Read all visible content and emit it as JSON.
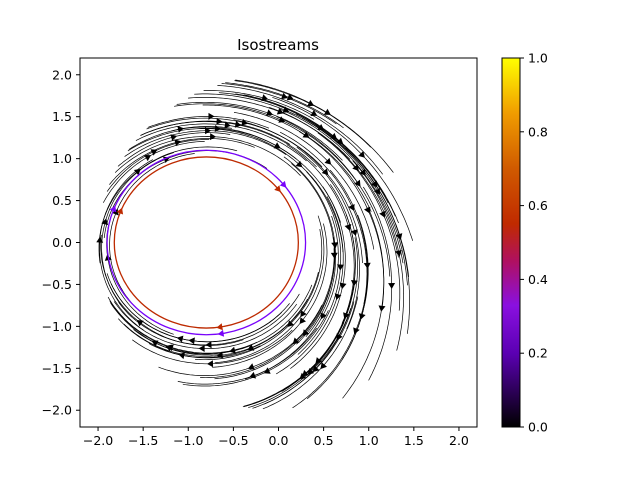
{
  "chart_data": {
    "type": "streamplot",
    "title": "Isostreams",
    "xlabel": "",
    "ylabel": "",
    "xlim": [
      -2.2,
      2.2
    ],
    "ylim": [
      -2.2,
      2.2
    ],
    "xticks": [
      -2.0,
      -1.5,
      -1.0,
      -0.5,
      0.0,
      0.5,
      1.0,
      1.5,
      2.0
    ],
    "xtick_labels": [
      "−2.0",
      "−1.5",
      "−1.0",
      "−0.5",
      "0.0",
      "0.5",
      "1.0",
      "1.5",
      "2.0"
    ],
    "yticks": [
      -2.0,
      -1.5,
      -1.0,
      -0.5,
      0.0,
      0.5,
      1.0,
      1.5,
      2.0
    ],
    "ytick_labels": [
      "−2.0",
      "−1.5",
      "−1.0",
      "−0.5",
      "0.0",
      "0.5",
      "1.0",
      "1.5",
      "2.0"
    ],
    "grid": false,
    "colormap": "gnuplot",
    "colorbar": {
      "range": [
        0.0,
        1.0
      ],
      "ticks": [
        0.0,
        0.2,
        0.4,
        0.6,
        0.8,
        1.0
      ],
      "tick_labels": [
        "0.0",
        "0.2",
        "0.4",
        "0.6",
        "0.8",
        "1.0"
      ]
    },
    "outer_domain_radius": 2.0,
    "circular_streams": [
      {
        "center": [
          -0.8,
          0.0
        ],
        "radius": 1.02,
        "value": 0.55
      },
      {
        "center": [
          -0.8,
          0.0
        ],
        "radius": 1.1,
        "value": 0.22
      }
    ],
    "background_stream_color": "#000000"
  }
}
